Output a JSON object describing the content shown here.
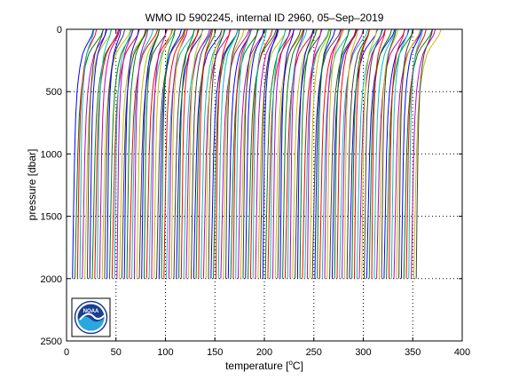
{
  "chart_data": {
    "type": "line",
    "title": "WMO ID 5902245, internal ID 2960, 05–Sep–2019",
    "xlabel_prefix": "temperature [",
    "xlabel_unit_sup": "o",
    "xlabel_suffix": "C]",
    "ylabel": "pressure [dbar]",
    "xlim": [
      0,
      400
    ],
    "ylim": [
      0,
      2500
    ],
    "y_reversed": true,
    "xticks": [
      0,
      50,
      100,
      150,
      200,
      250,
      300,
      350,
      400
    ],
    "yticks": [
      0,
      500,
      1000,
      1500,
      2000,
      2500
    ],
    "grid": "dotted, drawn only where not covered by profiles",
    "profile_series": {
      "description": "waterfall of temperature profiles, each offset in x",
      "count": 140,
      "first_offset": 6,
      "offset_step": 2.5,
      "profile_shape": {
        "pressure": [
          0,
          50,
          100,
          150,
          200,
          300,
          400,
          500,
          700,
          1000,
          1500,
          2000
        ],
        "relative_temperature": [
          25,
          23,
          19,
          15,
          12,
          9,
          7,
          5.5,
          3.8,
          2.5,
          1.2,
          0
        ]
      },
      "line_colors": [
        "#0000ff",
        "#008000",
        "#ff0000",
        "#00bfbf",
        "#bf00bf",
        "#bfbf00",
        "#404040"
      ]
    },
    "logo": {
      "text": "NOAA",
      "colors": {
        "sky": "#1a3f8f",
        "ring": "#ffffff",
        "water": "#2aa7e0",
        "box_border": "#000000"
      }
    }
  }
}
